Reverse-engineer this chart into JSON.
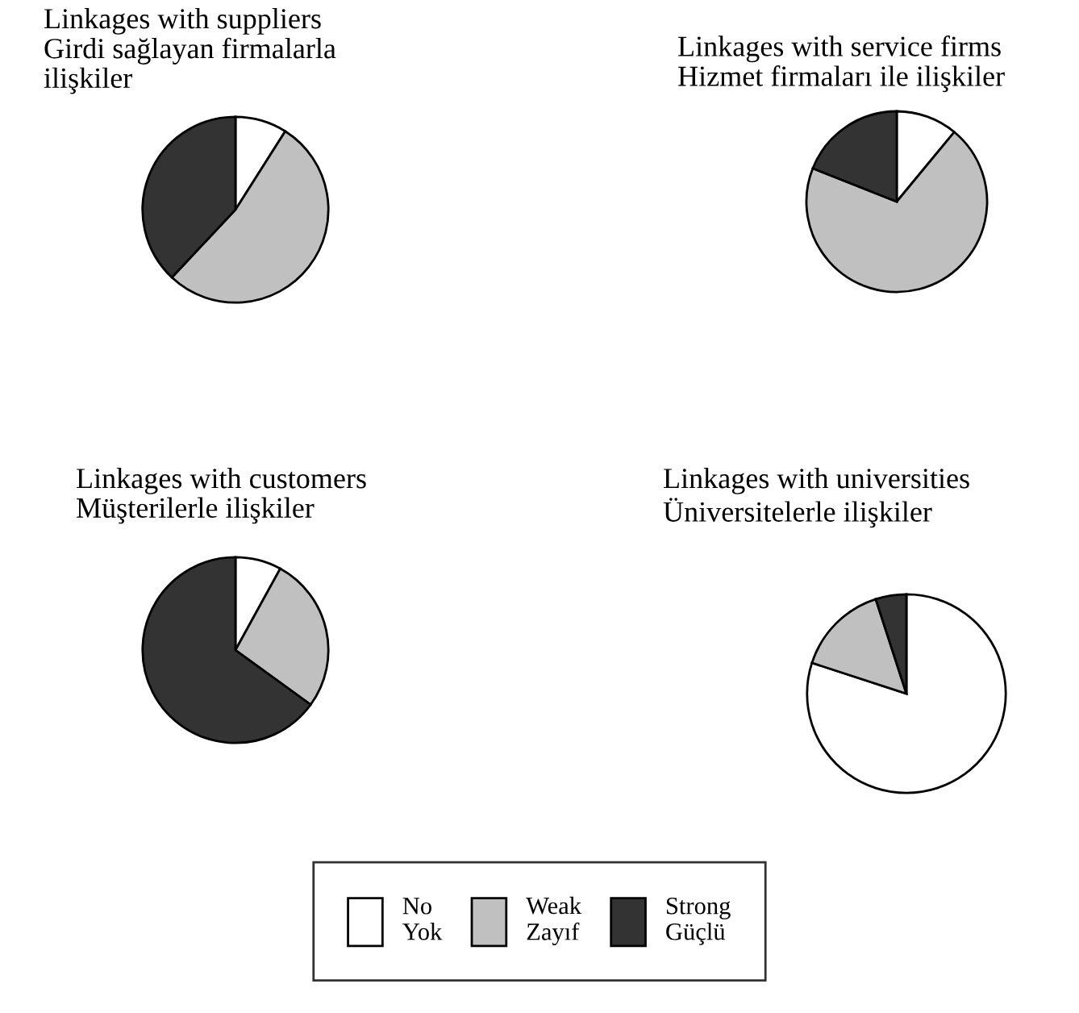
{
  "chart_data": [
    {
      "type": "pie",
      "title": "Linkages with suppliers\nGirdi sağlayan firmalarla\nilişkiler",
      "categories": [
        "No\nYok",
        "Weak\nZayıf",
        "Strong\nGüçlü"
      ],
      "values": [
        9,
        53,
        38
      ],
      "colors": [
        "#ffffff",
        "#c0c0c0",
        "#333333"
      ],
      "legend": "bottom"
    },
    {
      "type": "pie",
      "title": "Linkages with service firms\nHizmet firmaları ile ilişkiler",
      "categories": [
        null,
        null,
        null
      ],
      "values": [
        11,
        70,
        19
      ],
      "colors": [
        "#ffffff",
        "#c0c0c0",
        "#333333"
      ]
    },
    {
      "type": "pie",
      "title": "Linkages with customers\nMüşterilerle ilişkiler",
      "categories": [
        null,
        null,
        null
      ],
      "values": [
        8,
        27,
        65
      ],
      "colors": [
        "#ffffff",
        "#c0c0c0",
        "#333333"
      ]
    },
    {
      "type": "pie",
      "title": "Linkages with universities\nÜniversitelerle ilişkiler",
      "categories": [
        null,
        null,
        null
      ],
      "values": [
        80,
        15,
        5
      ],
      "colors": [
        "#ffffff",
        "#c0c0c0",
        "#333333"
      ]
    }
  ]
}
